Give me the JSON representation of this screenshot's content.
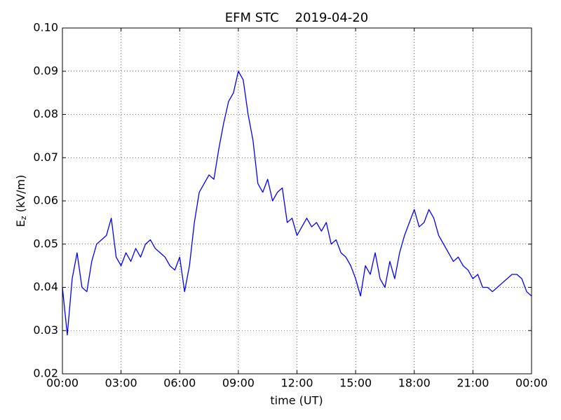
{
  "chart_data": {
    "type": "line",
    "title": "EFM STC    2019-04-20",
    "xlabel": "time (UT)",
    "ylabel": {
      "main": "E",
      "sub": "z",
      "unit": " (kV/m)"
    },
    "color": "#0000ff",
    "grid": true,
    "xlim": [
      0,
      24
    ],
    "xticks": [
      {
        "value": 0,
        "label": "00:00"
      },
      {
        "value": 3,
        "label": "03:00"
      },
      {
        "value": 6,
        "label": "06:00"
      },
      {
        "value": 9,
        "label": "09:00"
      },
      {
        "value": 12,
        "label": "12:00"
      },
      {
        "value": 15,
        "label": "15:00"
      },
      {
        "value": 18,
        "label": "18:00"
      },
      {
        "value": 21,
        "label": "21:00"
      },
      {
        "value": 24,
        "label": "00:00"
      }
    ],
    "ylim": [
      0.02,
      0.1
    ],
    "yticks": [
      0.02,
      0.03,
      0.04,
      0.05,
      0.06,
      0.07,
      0.08,
      0.09,
      {
        "value": 0.1,
        "label": "0.10"
      }
    ],
    "x": [
      0,
      0.25,
      0.5,
      0.75,
      1,
      1.25,
      1.5,
      1.75,
      2,
      2.25,
      2.5,
      2.75,
      3,
      3.25,
      3.5,
      3.75,
      4,
      4.25,
      4.5,
      4.75,
      5,
      5.25,
      5.5,
      5.75,
      6,
      6.25,
      6.5,
      6.75,
      7,
      7.25,
      7.5,
      7.75,
      8,
      8.25,
      8.5,
      8.75,
      9,
      9.25,
      9.5,
      9.75,
      10,
      10.25,
      10.5,
      10.75,
      11,
      11.25,
      11.5,
      11.75,
      12,
      12.25,
      12.5,
      12.75,
      13,
      13.25,
      13.5,
      13.75,
      14,
      14.25,
      14.5,
      14.75,
      15,
      15.25,
      15.5,
      15.75,
      16,
      16.25,
      16.5,
      16.75,
      17,
      17.25,
      17.5,
      17.75,
      18,
      18.25,
      18.5,
      18.75,
      19,
      19.25,
      19.5,
      19.75,
      20,
      20.25,
      20.5,
      20.75,
      21,
      21.25,
      21.5,
      21.75,
      22,
      22.25,
      22.5,
      22.75,
      23,
      23.25,
      23.5,
      23.75,
      24
    ],
    "values": [
      0.04,
      0.029,
      0.042,
      0.048,
      0.04,
      0.039,
      0.046,
      0.05,
      0.051,
      0.052,
      0.056,
      0.047,
      0.045,
      0.048,
      0.046,
      0.049,
      0.047,
      0.05,
      0.051,
      0.049,
      0.048,
      0.047,
      0.045,
      0.044,
      0.047,
      0.039,
      0.045,
      0.055,
      0.062,
      0.064,
      0.066,
      0.065,
      0.072,
      0.078,
      0.083,
      0.085,
      0.09,
      0.088,
      0.08,
      0.074,
      0.064,
      0.062,
      0.065,
      0.06,
      0.062,
      0.063,
      0.055,
      0.056,
      0.052,
      0.054,
      0.056,
      0.054,
      0.055,
      0.053,
      0.055,
      0.05,
      0.051,
      0.048,
      0.047,
      0.045,
      0.042,
      0.038,
      0.045,
      0.043,
      0.048,
      0.042,
      0.04,
      0.046,
      0.042,
      0.048,
      0.052,
      0.055,
      0.058,
      0.054,
      0.055,
      0.058,
      0.056,
      0.052,
      0.05,
      0.048,
      0.046,
      0.047,
      0.045,
      0.044,
      0.042,
      0.043,
      0.04,
      0.04,
      0.039,
      0.04,
      0.041,
      0.042,
      0.043,
      0.043,
      0.042,
      0.039,
      0.038
    ]
  }
}
